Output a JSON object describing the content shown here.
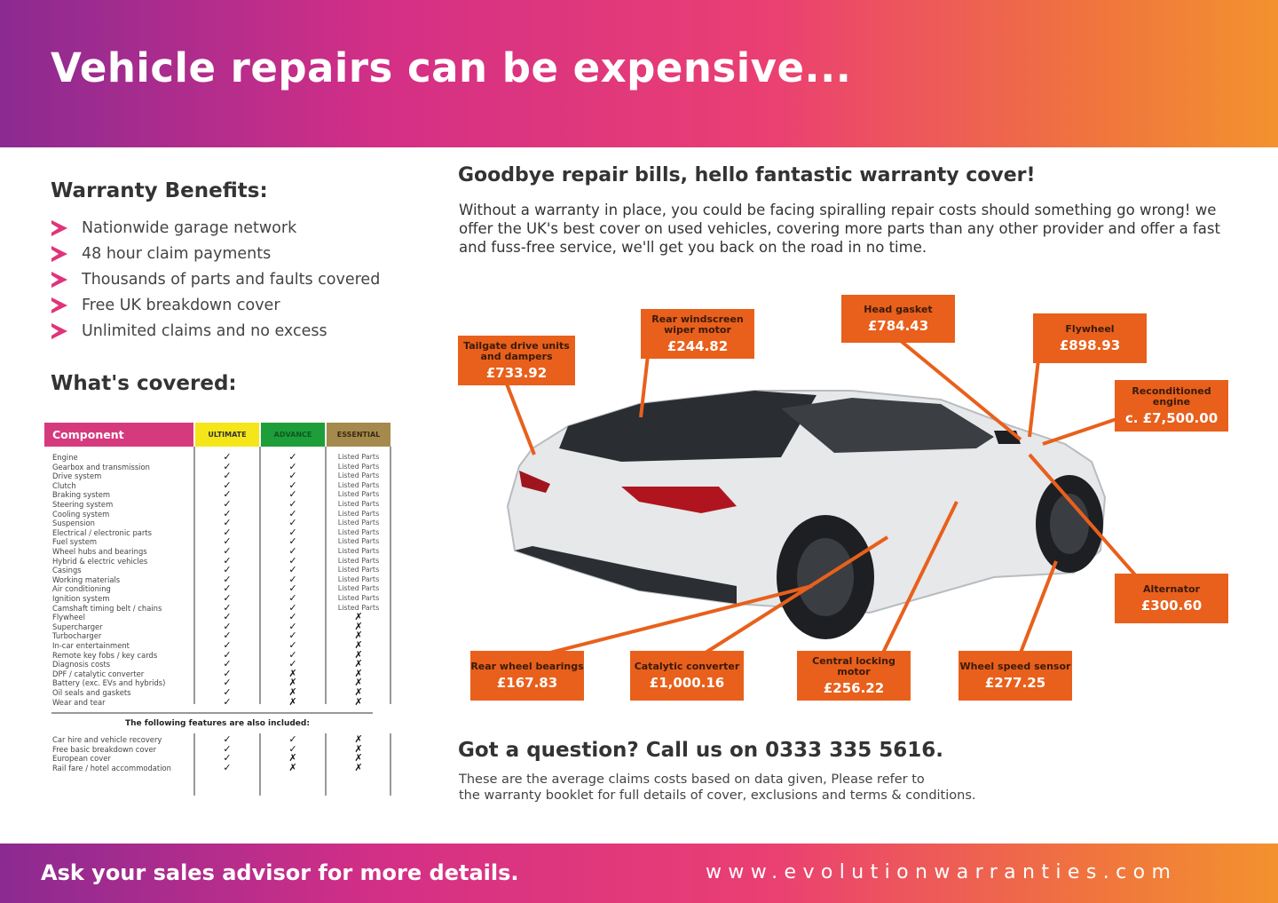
{
  "header": {
    "title": "Vehicle repairs can be expensive..."
  },
  "benefits": {
    "title": "Warranty Benefits:",
    "items": [
      "Nationwide garage network",
      "48 hour claim payments",
      "Thousands of parts and faults covered",
      "Free UK breakdown cover",
      "Unlimited claims and no excess"
    ]
  },
  "covered": {
    "title": "What's covered:",
    "columns": [
      "Component",
      "ULTIMATE",
      "ADVANCE",
      "ESSENTIAL"
    ],
    "column_colors": [
      "#d63a7e",
      "#f5e61a",
      "#1e9e3a",
      "#a58a4e"
    ],
    "components": [
      "Engine",
      "Gearbox and transmission",
      "Drive system",
      "Clutch",
      "Braking system",
      "Steering system",
      "Cooling system",
      "Suspension",
      "Electrical / electronic parts",
      "Fuel system",
      "Wheel hubs and bearings",
      "Hybrid & electric vehicles",
      "Casings",
      "Working materials",
      "Air conditioning",
      "Ignition system",
      "Camshaft timing belt / chains",
      "Flywheel",
      "Supercharger",
      "Turbocharger",
      "In-car entertainment",
      "Remote key fobs / key cards",
      "Diagnosis costs",
      "DPF / catalytic converter",
      "Battery (exc. EVs and hybrids)",
      "Oil seals and gaskets",
      "Wear and tear"
    ],
    "ultimate": [
      "✓",
      "✓",
      "✓",
      "✓",
      "✓",
      "✓",
      "✓",
      "✓",
      "✓",
      "✓",
      "✓",
      "✓",
      "✓",
      "✓",
      "✓",
      "✓",
      "✓",
      "✓",
      "✓",
      "✓",
      "✓",
      "✓",
      "✓",
      "✓",
      "✓",
      "✓",
      "✓"
    ],
    "advance": [
      "✓",
      "✓",
      "✓",
      "✓",
      "✓",
      "✓",
      "✓",
      "✓",
      "✓",
      "✓",
      "✓",
      "✓",
      "✓",
      "✓",
      "✓",
      "✓",
      "✓",
      "✓",
      "✓",
      "✓",
      "✓",
      "✓",
      "✓",
      "✗",
      "✗",
      "✗",
      "✗"
    ],
    "essential": [
      "Listed Parts",
      "Listed Parts",
      "Listed Parts",
      "Listed Parts",
      "Listed Parts",
      "Listed Parts",
      "Listed Parts",
      "Listed Parts",
      "Listed Parts",
      "Listed Parts",
      "Listed Parts",
      "Listed Parts",
      "Listed Parts",
      "Listed Parts",
      "Listed Parts",
      "Listed Parts",
      "Listed Parts",
      "✗",
      "✗",
      "✗",
      "✗",
      "✗",
      "✗",
      "✗",
      "✗",
      "✗",
      "✗"
    ],
    "extras_title": "The following features are also included:",
    "extras": [
      "Car hire and vehicle recovery",
      "Free basic breakdown cover",
      "European cover",
      "Rail fare / hotel accommodation"
    ],
    "extras_ultimate": [
      "✓",
      "✓",
      "✓",
      "✓"
    ],
    "extras_advance": [
      "✓",
      "✓",
      "✗",
      "✗"
    ],
    "extras_essential": [
      "✗",
      "✗",
      "✗",
      "✗"
    ]
  },
  "main": {
    "title": "Goodbye repair bills, hello fantastic warranty cover!",
    "intro": "Without a warranty in place, you could be facing spiralling repair costs should something go wrong! we offer the UK's best cover on used vehicles, covering more parts than any other provider and offer a fast and fuss-free service, we'll get you back on the road in no time."
  },
  "callouts": [
    {
      "name": "Tailgate drive units and dampers",
      "price": "£733.92"
    },
    {
      "name": "Rear windscreen wiper motor",
      "price": "£244.82"
    },
    {
      "name": "Head gasket",
      "price": "£784.43"
    },
    {
      "name": "Flywheel",
      "price": "£898.93"
    },
    {
      "name": "Reconditioned engine",
      "price": "c. £7,500.00"
    },
    {
      "name": "Alternator",
      "price": "£300.60"
    },
    {
      "name": "Rear wheel bearings",
      "price": "£167.83"
    },
    {
      "name": "Catalytic converter",
      "price": "£1,000.16"
    },
    {
      "name": "Central locking motor",
      "price": "£256.22"
    },
    {
      "name": "Wheel speed sensor",
      "price": "£277.25"
    }
  ],
  "question": {
    "title": "Got a question? Call us on 0333 335 5616.",
    "note_1": "These are the average claims costs based on data given, Please refer to",
    "note_2": "the warranty booklet for full details of cover, exclusions and terms & conditions."
  },
  "footer": {
    "left": "Ask your sales advisor for more details.",
    "right": "www.evolutionwarranties.com"
  },
  "colors": {
    "callout": "#e8601c",
    "accent": "#e0337a"
  }
}
